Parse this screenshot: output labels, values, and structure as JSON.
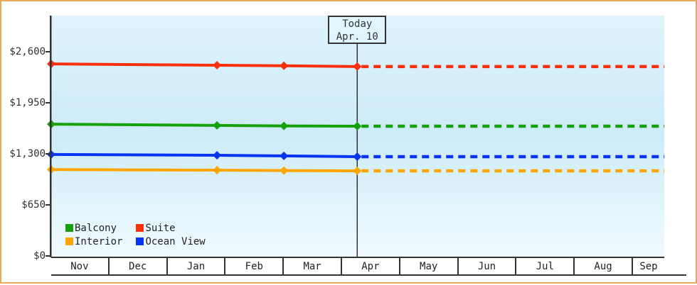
{
  "frame": {
    "border_color": "#e9a75b"
  },
  "plot": {
    "bg_gradient_top": "#dff4fd",
    "bg_gradient_mid": "#cdebf8",
    "bg_gradient_bottom": "#f0fbff",
    "axis_color": "#333333"
  },
  "today_box": {
    "line1": "Today",
    "line2": "Apr. 10"
  },
  "legend": {
    "items": [
      {
        "label": "Balcony",
        "color": "#16a10a"
      },
      {
        "label": "Suite",
        "color": "#fa2f0c"
      },
      {
        "label": "Interior",
        "color": "#ffa502"
      },
      {
        "label": "Ocean View",
        "color": "#0734f2"
      }
    ]
  },
  "chart_data": {
    "type": "line",
    "title": "",
    "xlabel": "",
    "ylabel": "",
    "grid": false,
    "legend_position": "bottom-left-inside",
    "x_categories": [
      "Nov",
      "Dec",
      "Jan",
      "Feb",
      "Mar",
      "Apr",
      "May",
      "Jun",
      "Jul",
      "Aug",
      "Sep"
    ],
    "x_extent_months": 10.54,
    "ylim": [
      0,
      3060
    ],
    "y_ticks": [
      {
        "value": 0,
        "label": "$0"
      },
      {
        "value": 650,
        "label": "$650"
      },
      {
        "value": 1300,
        "label": "$1,300"
      },
      {
        "value": 1950,
        "label": "$1,950"
      },
      {
        "value": 2600,
        "label": "$2,600"
      }
    ],
    "today": {
      "line1": "Today",
      "line2": "Apr. 10",
      "month_position": 5.26
    },
    "series": [
      {
        "name": "Suite",
        "color": "#fa2f0c",
        "points": [
          {
            "m": 0,
            "v": 2445
          },
          {
            "m": 2.85,
            "v": 2428
          },
          {
            "m": 4.0,
            "v": 2422
          },
          {
            "m": 5.26,
            "v": 2412
          }
        ],
        "projected_value": 2412
      },
      {
        "name": "Balcony",
        "color": "#16a10a",
        "points": [
          {
            "m": 0,
            "v": 1678
          },
          {
            "m": 2.85,
            "v": 1662
          },
          {
            "m": 4.0,
            "v": 1656
          },
          {
            "m": 5.26,
            "v": 1652
          }
        ],
        "projected_value": 1652
      },
      {
        "name": "Ocean View",
        "color": "#0734f2",
        "points": [
          {
            "m": 0,
            "v": 1292
          },
          {
            "m": 2.85,
            "v": 1282
          },
          {
            "m": 4.0,
            "v": 1274
          },
          {
            "m": 5.26,
            "v": 1264
          }
        ],
        "projected_value": 1264
      },
      {
        "name": "Interior",
        "color": "#ffa502",
        "points": [
          {
            "m": 0,
            "v": 1100
          },
          {
            "m": 2.85,
            "v": 1092
          },
          {
            "m": 4.0,
            "v": 1087
          },
          {
            "m": 5.26,
            "v": 1083
          }
        ],
        "projected_value": 1083
      }
    ]
  }
}
